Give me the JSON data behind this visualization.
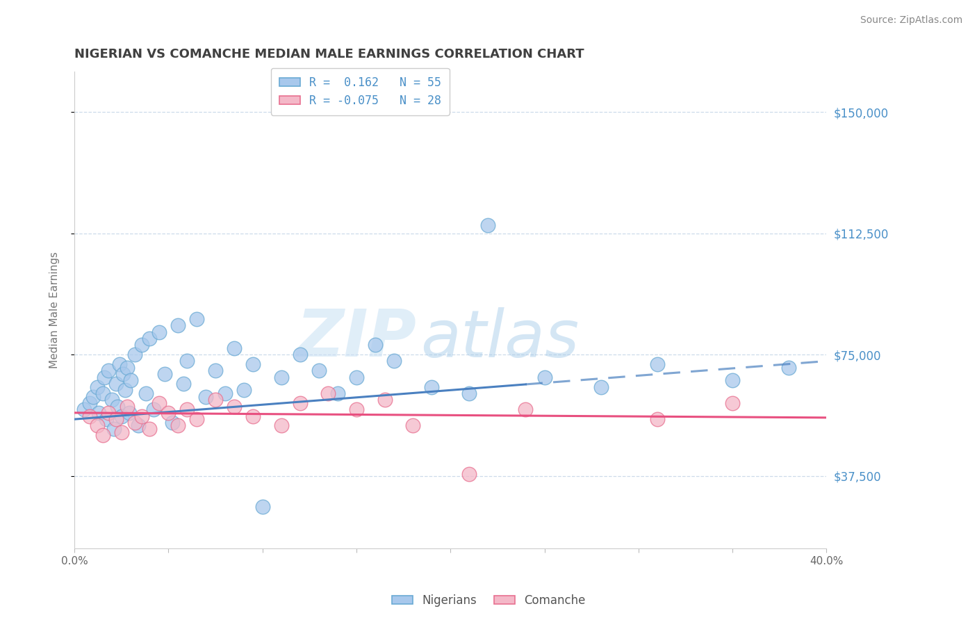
{
  "title": "NIGERIAN VS COMANCHE MEDIAN MALE EARNINGS CORRELATION CHART",
  "source": "Source: ZipAtlas.com",
  "ylabel": "Median Male Earnings",
  "xmin": 0.0,
  "xmax": 0.4,
  "ymin": 15000,
  "ymax": 162500,
  "yticks": [
    37500,
    75000,
    112500,
    150000
  ],
  "ytick_labels": [
    "$37,500",
    "$75,000",
    "$112,500",
    "$150,000"
  ],
  "xticks": [
    0.0,
    0.05,
    0.1,
    0.15,
    0.2,
    0.25,
    0.3,
    0.35,
    0.4
  ],
  "xtick_labels": [
    "0.0%",
    "",
    "",
    "",
    "",
    "",
    "",
    "",
    "40.0%"
  ],
  "blue_fill": "#A8C8EC",
  "blue_edge": "#6AAAD4",
  "pink_fill": "#F4B8C8",
  "pink_edge": "#E87090",
  "blue_line_color": "#4A80C0",
  "pink_line_color": "#E85080",
  "title_color": "#404040",
  "axis_label_color": "#4A90C8",
  "grid_color": "#C8D8E8",
  "legend_label1": "Nigerians",
  "legend_label2": "Comanche",
  "watermark_zip": "ZIP",
  "watermark_atlas": "atlas",
  "nigerian_x": [
    0.005,
    0.008,
    0.01,
    0.012,
    0.013,
    0.015,
    0.016,
    0.017,
    0.018,
    0.02,
    0.021,
    0.022,
    0.023,
    0.024,
    0.025,
    0.026,
    0.027,
    0.028,
    0.029,
    0.03,
    0.032,
    0.034,
    0.036,
    0.038,
    0.04,
    0.042,
    0.045,
    0.048,
    0.052,
    0.055,
    0.058,
    0.06,
    0.065,
    0.07,
    0.075,
    0.08,
    0.085,
    0.09,
    0.095,
    0.1,
    0.11,
    0.12,
    0.13,
    0.14,
    0.15,
    0.16,
    0.17,
    0.19,
    0.21,
    0.22,
    0.25,
    0.28,
    0.31,
    0.35,
    0.38
  ],
  "nigerian_y": [
    58000,
    60000,
    62000,
    65000,
    57000,
    63000,
    68000,
    55000,
    70000,
    61000,
    52000,
    66000,
    59000,
    72000,
    56000,
    69000,
    64000,
    71000,
    57000,
    67000,
    75000,
    53000,
    78000,
    63000,
    80000,
    58000,
    82000,
    69000,
    54000,
    84000,
    66000,
    73000,
    86000,
    62000,
    70000,
    63000,
    77000,
    64000,
    72000,
    28000,
    68000,
    75000,
    70000,
    63000,
    68000,
    78000,
    73000,
    65000,
    63000,
    115000,
    68000,
    65000,
    72000,
    67000,
    71000
  ],
  "comanche_x": [
    0.008,
    0.012,
    0.015,
    0.018,
    0.022,
    0.025,
    0.028,
    0.032,
    0.036,
    0.04,
    0.045,
    0.05,
    0.055,
    0.06,
    0.065,
    0.075,
    0.085,
    0.095,
    0.11,
    0.12,
    0.135,
    0.15,
    0.165,
    0.18,
    0.21,
    0.24,
    0.31,
    0.35
  ],
  "comanche_y": [
    56000,
    53000,
    50000,
    57000,
    55000,
    51000,
    59000,
    54000,
    56000,
    52000,
    60000,
    57000,
    53000,
    58000,
    55000,
    61000,
    59000,
    56000,
    53000,
    60000,
    63000,
    58000,
    61000,
    53000,
    38000,
    58000,
    55000,
    60000
  ],
  "nig_trend_x0": 0.0,
  "nig_trend_x_solid_end": 0.24,
  "nig_trend_xmax": 0.4,
  "nig_trend_y0": 55000,
  "nig_trend_ymax": 73000,
  "com_trend_y0": 57000,
  "com_trend_ymax": 55500
}
